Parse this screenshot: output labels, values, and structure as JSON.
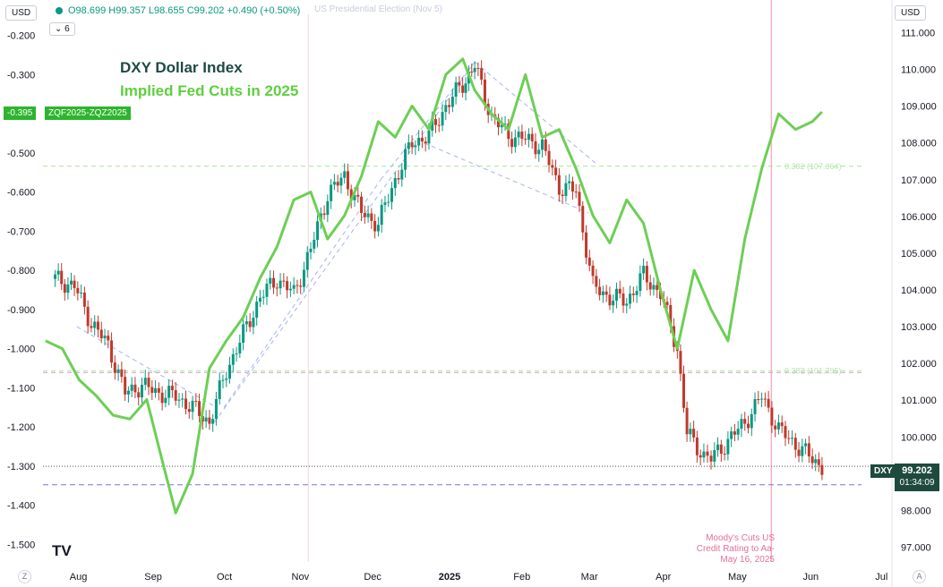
{
  "header": {
    "currency_left": "USD",
    "currency_right": "USD",
    "ohlc_text": "O98.699 H99.357 L98.655 C99.202 +0.490 (+0.50%)",
    "collapse_label": "6",
    "collapse_icon": "chevron-down-icon"
  },
  "titles": {
    "dxy": "DXY Dollar Index",
    "fed": "Implied Fed Cuts in 2025"
  },
  "events": {
    "election": "US Presidential Election (Nov 5)",
    "moodys_line1": "Moody's Cuts US",
    "moodys_line2": "Credit Rating to Aa-",
    "moodys_line3": "May 16, 2025"
  },
  "tags": {
    "left_value": "-0.395",
    "left_symbol": "ZQF2025-ZQZ2025",
    "dxy_symbol": "DXY",
    "dxy_price": "99.202",
    "dxy_countdown": "01:34:09"
  },
  "bottom": {
    "left_corner": "Z",
    "right_corner": "A",
    "logo": "TV"
  },
  "colors": {
    "up": "#089981",
    "down": "#c0392b",
    "fed_line": "#6ccf55",
    "fib_pink": "#d8a0d8",
    "fib_green": "#a6e59a",
    "support": "#7b74d8",
    "trend": "#a9b4ee"
  },
  "chart_data": {
    "type": "line",
    "series": [
      {
        "name": "DXY",
        "kind": "candlestick",
        "x": [
          "2024-07-23",
          "2024-07-31",
          "2024-08-07",
          "2024-08-14",
          "2024-08-21",
          "2024-08-28",
          "2024-09-04",
          "2024-09-11",
          "2024-09-18",
          "2024-09-25",
          "2024-10-02",
          "2024-10-09",
          "2024-10-16",
          "2024-10-23",
          "2024-10-30",
          "2024-11-06",
          "2024-11-13",
          "2024-11-20",
          "2024-11-27",
          "2024-12-04",
          "2024-12-11",
          "2024-12-18",
          "2024-12-25",
          "2025-01-01",
          "2025-01-08",
          "2025-01-13",
          "2025-01-20",
          "2025-01-27",
          "2025-02-03",
          "2025-02-10",
          "2025-02-17",
          "2025-02-24",
          "2025-03-03",
          "2025-03-10",
          "2025-03-17",
          "2025-03-24",
          "2025-03-31",
          "2025-04-07",
          "2025-04-11",
          "2025-04-18",
          "2025-04-21",
          "2025-04-28",
          "2025-05-05",
          "2025-05-12",
          "2025-05-19",
          "2025-05-26",
          "2025-06-02",
          "2025-06-06"
        ],
        "values": [
          104.3,
          104.1,
          103.1,
          102.5,
          101.2,
          101.4,
          101.2,
          101.1,
          100.8,
          100.4,
          101.8,
          102.8,
          103.8,
          104.3,
          103.9,
          105.1,
          106.6,
          107.1,
          106.1,
          105.8,
          107.0,
          108.0,
          108.2,
          109.0,
          109.6,
          110.1,
          108.7,
          108.2,
          108.1,
          107.9,
          106.8,
          106.7,
          104.1,
          103.8,
          103.7,
          104.4,
          103.9,
          102.4,
          100.1,
          99.5,
          99.4,
          99.9,
          100.4,
          101.1,
          100.2,
          99.8,
          99.4,
          99.2
        ],
        "ohlc_last": {
          "open": 98.699,
          "high": 99.357,
          "low": 98.655,
          "close": 99.202,
          "change": 0.49,
          "change_pct": 0.5
        }
      },
      {
        "name": "ZQF2025-ZQZ2025",
        "kind": "line",
        "x": [
          "2024-07-19",
          "2024-07-26",
          "2024-08-02",
          "2024-08-09",
          "2024-08-16",
          "2024-08-23",
          "2024-08-30",
          "2024-09-06",
          "2024-09-11",
          "2024-09-18",
          "2024-09-25",
          "2024-10-02",
          "2024-10-09",
          "2024-10-16",
          "2024-10-23",
          "2024-10-30",
          "2024-11-06",
          "2024-11-13",
          "2024-11-20",
          "2024-11-27",
          "2024-12-04",
          "2024-12-11",
          "2024-12-18",
          "2024-12-25",
          "2025-01-01",
          "2025-01-08",
          "2025-01-13",
          "2025-01-20",
          "2025-01-27",
          "2025-02-03",
          "2025-02-10",
          "2025-02-17",
          "2025-02-24",
          "2025-03-03",
          "2025-03-10",
          "2025-03-17",
          "2025-03-24",
          "2025-03-31",
          "2025-04-07",
          "2025-04-14",
          "2025-04-21",
          "2025-04-28",
          "2025-05-05",
          "2025-05-12",
          "2025-05-19",
          "2025-05-26",
          "2025-06-02",
          "2025-06-06"
        ],
        "values": [
          -0.98,
          -1.0,
          -1.08,
          -1.12,
          -1.17,
          -1.18,
          -1.13,
          -1.3,
          -1.42,
          -1.32,
          -1.05,
          -0.98,
          -0.92,
          -0.82,
          -0.74,
          -0.62,
          -0.6,
          -0.72,
          -0.66,
          -0.56,
          -0.42,
          -0.46,
          -0.38,
          -0.44,
          -0.3,
          -0.26,
          -0.34,
          -0.4,
          -0.44,
          -0.3,
          -0.46,
          -0.44,
          -0.54,
          -0.66,
          -0.73,
          -0.62,
          -0.68,
          -0.85,
          -1.0,
          -0.8,
          -0.9,
          -0.98,
          -0.72,
          -0.54,
          -0.4,
          -0.44,
          -0.42,
          -0.395
        ]
      }
    ],
    "x_ticks": [
      "Aug",
      "Sep",
      "Oct",
      "Nov",
      "Dec",
      "2025",
      "Feb",
      "Mar",
      "Apr",
      "May",
      "Jun",
      "Jul"
    ],
    "y_right_ticks": [
      "111.000",
      "110.000",
      "109.000",
      "108.000",
      "107.000",
      "106.000",
      "105.000",
      "104.000",
      "103.000",
      "102.000",
      "101.000",
      "100.000",
      "99.000",
      "98.000",
      "97.000"
    ],
    "y_left_ticks": [
      "-0.200",
      "-0.300",
      "-0.400",
      "-0.500",
      "-0.600",
      "-0.700",
      "-0.800",
      "-0.900",
      "-1.000",
      "-1.100",
      "-1.200",
      "-1.300",
      "-1.400",
      "-1.500"
    ],
    "y_right_range": [
      96.6,
      111.4
    ],
    "y_left_range": [
      -1.545,
      -0.155
    ],
    "annotations": [
      {
        "type": "fib",
        "label": "0.382 (107.364)",
        "value": 107.364
      },
      {
        "type": "fib",
        "label": "0.382 (101.795)",
        "value": 101.795
      }
    ],
    "grid": false,
    "legend": "top-left"
  }
}
